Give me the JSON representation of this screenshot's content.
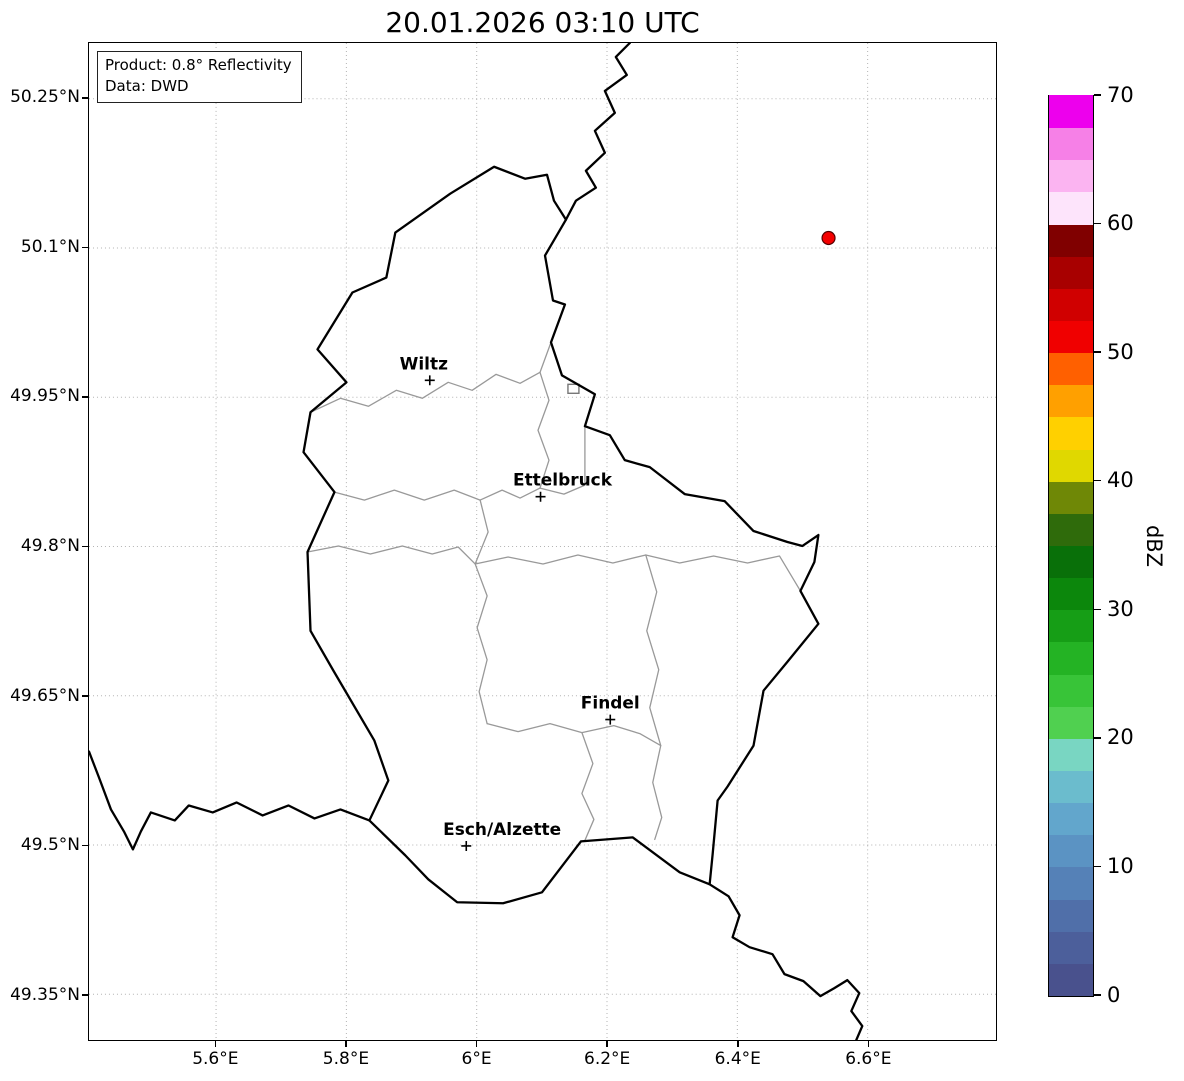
{
  "title": "20.01.2026 03:10 UTC",
  "info_box": {
    "product": "Product: 0.8° Reflectivity",
    "data": "Data: DWD"
  },
  "axes": {
    "extent": {
      "lon_min": 5.405,
      "lon_max": 6.797,
      "lat_min": 49.304,
      "lat_max": 50.306
    },
    "x_ticks": [
      {
        "label": "5.6°E",
        "lon": 5.6
      },
      {
        "label": "5.8°E",
        "lon": 5.8
      },
      {
        "label": "6°E",
        "lon": 6.0
      },
      {
        "label": "6.2°E",
        "lon": 6.2
      },
      {
        "label": "6.4°E",
        "lon": 6.4
      },
      {
        "label": "6.6°E",
        "lon": 6.6
      }
    ],
    "y_ticks": [
      {
        "label": "50.25°N",
        "lat": 50.25
      },
      {
        "label": "50.1°N",
        "lat": 50.1
      },
      {
        "label": "49.95°N",
        "lat": 49.95
      },
      {
        "label": "49.8°N",
        "lat": 49.8
      },
      {
        "label": "49.65°N",
        "lat": 49.65
      },
      {
        "label": "49.5°N",
        "lat": 49.5
      },
      {
        "label": "49.35°N",
        "lat": 49.35
      }
    ],
    "grid": true
  },
  "cities": [
    {
      "name": "Wiltz",
      "lon": 5.928,
      "lat": 49.967,
      "label_dx": -6
    },
    {
      "name": "Ettelbruck",
      "lon": 6.098,
      "lat": 49.85,
      "label_dx": 22
    },
    {
      "name": "Findel",
      "lon": 6.205,
      "lat": 49.626,
      "label_dx": 0
    },
    {
      "name": "Esch/Alzette",
      "lon": 5.984,
      "lat": 49.499,
      "label_dx": 36
    }
  ],
  "radar_echo": {
    "lon": 6.54,
    "lat": 50.11,
    "fill": "#f40000",
    "edge": "#550000"
  },
  "colorbar": {
    "label": "dBZ",
    "unit_min": 0,
    "unit_max": 70,
    "tick_values": [
      0,
      10,
      20,
      30,
      40,
      50,
      60,
      70
    ],
    "band_step": 2.5,
    "colors_bottom_to_top": [
      "#49518d",
      "#4c5f9b",
      "#506fa9",
      "#5581b7",
      "#5b93c3",
      "#62a6cc",
      "#6bbccd",
      "#79d6c2",
      "#50d050",
      "#38c438",
      "#24b324",
      "#169e16",
      "#0c870c",
      "#097009",
      "#2f6b0b",
      "#6f8806",
      "#e0d800",
      "#ffd000",
      "#ffa000",
      "#ff6000",
      "#f00000",
      "#d00000",
      "#a80000",
      "#800000",
      "#fde4fb",
      "#fbb4f1",
      "#f680e7",
      "#ed00ed"
    ]
  }
}
